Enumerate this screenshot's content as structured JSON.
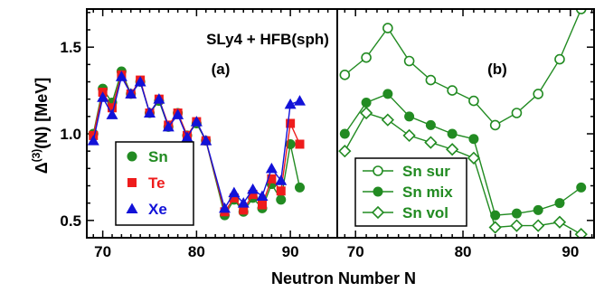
{
  "chart_data": [
    {
      "panel": "(a)",
      "type": "line",
      "annotation": "SLy4 + HFB(sph)",
      "label": "(a)",
      "xlabel": "Neutron Number N",
      "ylabel": "Δ(3)(N) [MeV]",
      "xlim": [
        68.3,
        95
      ],
      "ylim": [
        0.4,
        1.72
      ],
      "xticks": [
        70,
        80,
        90
      ],
      "yticks": [
        0.5,
        1.0,
        1.5
      ],
      "yticklabels": [
        "0.5",
        "1.0",
        "1.5"
      ],
      "legend_position": "lower-left",
      "series": [
        {
          "name": "Sn",
          "color": "#228b22",
          "marker": "circle",
          "x": [
            69,
            70,
            71,
            72,
            73,
            74,
            75,
            76,
            77,
            78,
            79,
            80,
            81,
            83,
            84,
            85,
            86,
            87,
            88,
            89,
            90,
            91
          ],
          "y": [
            1.0,
            1.26,
            1.18,
            1.36,
            1.23,
            1.3,
            1.12,
            1.19,
            1.04,
            1.12,
            0.99,
            1.06,
            0.96,
            0.53,
            0.62,
            0.55,
            0.63,
            0.57,
            0.71,
            0.62,
            0.94,
            0.69
          ]
        },
        {
          "name": "Te",
          "color": "#ee1c1c",
          "marker": "square",
          "x": [
            69,
            70,
            71,
            72,
            73,
            74,
            75,
            76,
            77,
            78,
            79,
            80,
            81,
            83,
            84,
            85,
            86,
            87,
            88,
            89,
            90,
            91
          ],
          "y": [
            0.99,
            1.24,
            1.15,
            1.34,
            1.23,
            1.31,
            1.12,
            1.2,
            1.05,
            1.12,
            0.99,
            1.07,
            0.96,
            0.55,
            0.63,
            0.56,
            0.65,
            0.59,
            0.74,
            0.67,
            1.06,
            0.94
          ]
        },
        {
          "name": "Xe",
          "color": "#1212d8",
          "marker": "triangle",
          "x": [
            69,
            70,
            71,
            72,
            73,
            74,
            75,
            76,
            77,
            78,
            79,
            80,
            81,
            83,
            84,
            85,
            86,
            87,
            88,
            89,
            90,
            91
          ],
          "y": [
            0.96,
            1.21,
            1.11,
            1.33,
            1.23,
            1.3,
            1.12,
            1.2,
            1.04,
            1.11,
            0.98,
            1.07,
            0.96,
            0.57,
            0.66,
            0.6,
            0.68,
            0.64,
            0.8,
            0.73,
            1.17,
            1.19
          ]
        }
      ]
    },
    {
      "panel": "(b)",
      "type": "line",
      "label": "(b)",
      "xlabel": "Neutron Number N",
      "xlim": [
        68.3,
        92.2
      ],
      "ylim": [
        0.4,
        1.72
      ],
      "xticks": [
        70,
        80,
        90
      ],
      "legend_position": "lower-left",
      "series": [
        {
          "name": "Sn sur",
          "color": "#228b22",
          "marker": "open-circle",
          "x": [
            69,
            71,
            73,
            75,
            77,
            79,
            81,
            83,
            85,
            87,
            89,
            91
          ],
          "y": [
            1.34,
            1.44,
            1.61,
            1.42,
            1.31,
            1.25,
            1.19,
            1.05,
            1.12,
            1.23,
            1.43,
            1.72
          ]
        },
        {
          "name": "Sn mix",
          "color": "#228b22",
          "marker": "filled-circle",
          "x": [
            69,
            71,
            73,
            75,
            77,
            79,
            81,
            83,
            85,
            87,
            89,
            91
          ],
          "y": [
            1.0,
            1.18,
            1.23,
            1.1,
            1.05,
            1.0,
            0.97,
            0.53,
            0.54,
            0.56,
            0.6,
            0.69
          ]
        },
        {
          "name": "Sn vol",
          "color": "#228b22",
          "marker": "open-diamond",
          "x": [
            69,
            71,
            73,
            75,
            77,
            79,
            81,
            83,
            85,
            87,
            89,
            91
          ],
          "y": [
            0.9,
            1.12,
            1.08,
            0.99,
            0.95,
            0.91,
            0.86,
            0.46,
            0.47,
            0.47,
            0.49,
            0.42
          ]
        }
      ]
    }
  ]
}
